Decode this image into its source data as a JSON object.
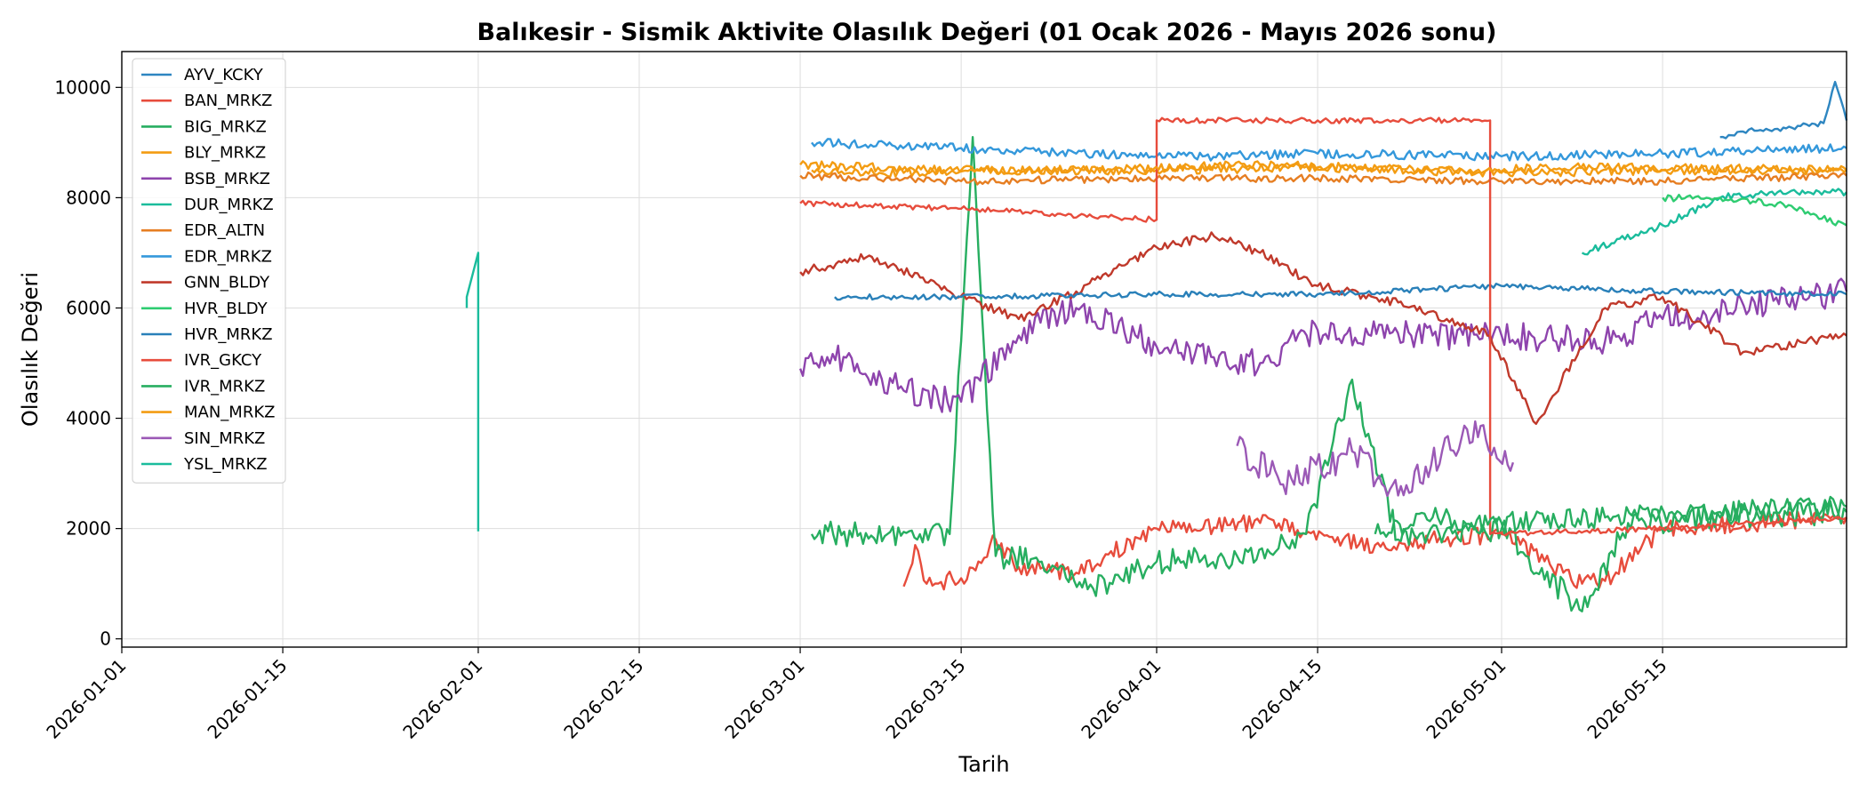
{
  "chart_data": {
    "type": "line",
    "title": "Balıkesir - Sismik Aktivite Olasılık Değeri (01 Ocak 2026 - Mayıs 2026 sonu)",
    "xlabel": "Tarih",
    "ylabel": "Olasılık Değeri",
    "x_range": [
      "2026-01-01",
      "2026-05-31"
    ],
    "ylim": [
      -150,
      10650
    ],
    "x_ticks": [
      "2026-01-01",
      "2026-01-15",
      "2026-02-01",
      "2026-02-15",
      "2026-03-01",
      "2026-03-15",
      "2026-04-01",
      "2026-04-15",
      "2026-05-01",
      "2026-05-15"
    ],
    "y_ticks": [
      0,
      2000,
      4000,
      6000,
      8000,
      10000
    ],
    "grid": true,
    "legend_position": "top-left",
    "series": [
      {
        "name": "AYV_KCKY",
        "color": "#2e86c1",
        "points": [
          [
            "2026-05-20",
            9100
          ],
          [
            "2026-05-22",
            9200
          ],
          [
            "2026-05-25",
            9250
          ],
          [
            "2026-05-27",
            9300
          ],
          [
            "2026-05-29",
            9350
          ],
          [
            "2026-05-30",
            10100
          ],
          [
            "2026-05-31",
            9400
          ]
        ]
      },
      {
        "name": "BAN_MRKZ",
        "color": "#e74c3c",
        "points": [
          [
            "2026-03-10",
            950
          ],
          [
            "2026-03-11",
            1700
          ],
          [
            "2026-03-12",
            1000
          ],
          [
            "2026-03-15",
            1100
          ],
          [
            "2026-03-18",
            1800
          ],
          [
            "2026-03-20",
            1300
          ],
          [
            "2026-03-25",
            1200
          ],
          [
            "2026-04-01",
            2000
          ],
          [
            "2026-04-10",
            2100
          ],
          [
            "2026-04-20",
            1700
          ],
          [
            "2026-05-01",
            1900
          ],
          [
            "2026-05-08",
            1000
          ],
          [
            "2026-05-10",
            1050
          ],
          [
            "2026-05-15",
            2000
          ],
          [
            "2026-05-31",
            2200
          ]
        ]
      },
      {
        "name": "BIG_MRKZ",
        "color": "#27ae60",
        "points": [
          [
            "2026-03-02",
            1900
          ],
          [
            "2026-03-14",
            1900
          ],
          [
            "2026-03-16",
            9100
          ],
          [
            "2026-03-18",
            1500
          ],
          [
            "2026-03-22",
            1400
          ],
          [
            "2026-03-26",
            900
          ],
          [
            "2026-04-01",
            1400
          ],
          [
            "2026-04-08",
            1500
          ],
          [
            "2026-04-14",
            1900
          ],
          [
            "2026-04-18",
            4700
          ],
          [
            "2026-04-22",
            1800
          ],
          [
            "2026-05-01",
            2000
          ],
          [
            "2026-05-08",
            500
          ],
          [
            "2026-05-12",
            2100
          ],
          [
            "2026-05-20",
            2200
          ],
          [
            "2026-05-31",
            2300
          ]
        ]
      },
      {
        "name": "BLY_MRKZ",
        "color": "#f39c12",
        "points": [
          [
            "2026-03-02",
            8500
          ],
          [
            "2026-03-10",
            8450
          ],
          [
            "2026-03-20",
            8500
          ],
          [
            "2026-04-01",
            8500
          ],
          [
            "2026-04-15",
            8550
          ],
          [
            "2026-05-01",
            8450
          ],
          [
            "2026-05-15",
            8500
          ],
          [
            "2026-05-31",
            8500
          ]
        ]
      },
      {
        "name": "BSB_MRKZ",
        "color": "#8e44ad",
        "points": [
          [
            "2026-03-01",
            4900
          ],
          [
            "2026-03-05",
            5100
          ],
          [
            "2026-03-10",
            4500
          ],
          [
            "2026-03-15",
            4300
          ],
          [
            "2026-03-20",
            5500
          ],
          [
            "2026-03-25",
            6000
          ],
          [
            "2026-04-01",
            5300
          ],
          [
            "2026-04-10",
            5000
          ],
          [
            "2026-04-15",
            5600
          ],
          [
            "2026-04-25",
            5500
          ],
          [
            "2026-05-01",
            5500
          ],
          [
            "2026-05-10",
            5400
          ],
          [
            "2026-05-15",
            5800
          ],
          [
            "2026-05-31",
            6300
          ]
        ]
      },
      {
        "name": "DUR_MRKZ",
        "color": "#1abc9c",
        "points": [
          [
            "2026-05-08",
            7000
          ],
          [
            "2026-05-15",
            7500
          ],
          [
            "2026-05-20",
            8000
          ],
          [
            "2026-05-25",
            8100
          ],
          [
            "2026-05-31",
            8100
          ]
        ]
      },
      {
        "name": "EDR_ALTN",
        "color": "#e67e22",
        "points": [
          [
            "2026-03-01",
            8400
          ],
          [
            "2026-03-15",
            8300
          ],
          [
            "2026-04-01",
            8350
          ],
          [
            "2026-04-15",
            8350
          ],
          [
            "2026-05-01",
            8300
          ],
          [
            "2026-05-15",
            8300
          ],
          [
            "2026-05-31",
            8400
          ]
        ]
      },
      {
        "name": "EDR_MRKZ",
        "color": "#3498db",
        "points": [
          [
            "2026-03-02",
            9000
          ],
          [
            "2026-03-09",
            8950
          ],
          [
            "2026-03-15",
            8900
          ],
          [
            "2026-03-25",
            8800
          ],
          [
            "2026-04-05",
            8750
          ],
          [
            "2026-04-15",
            8800
          ],
          [
            "2026-05-01",
            8750
          ],
          [
            "2026-05-15",
            8800
          ],
          [
            "2026-05-31",
            8900
          ]
        ]
      },
      {
        "name": "GNN_BLDY",
        "color": "#c0392b",
        "points": [
          [
            "2026-03-01",
            6650
          ],
          [
            "2026-03-07",
            6950
          ],
          [
            "2026-03-14",
            6300
          ],
          [
            "2026-03-20",
            5800
          ],
          [
            "2026-03-25",
            6300
          ],
          [
            "2026-04-01",
            7100
          ],
          [
            "2026-04-06",
            7300
          ],
          [
            "2026-04-10",
            7000
          ],
          [
            "2026-04-15",
            6400
          ],
          [
            "2026-04-22",
            6100
          ],
          [
            "2026-04-30",
            5500
          ],
          [
            "2026-05-04",
            3900
          ],
          [
            "2026-05-10",
            6000
          ],
          [
            "2026-05-15",
            6200
          ],
          [
            "2026-05-22",
            5200
          ],
          [
            "2026-05-31",
            5500
          ]
        ]
      },
      {
        "name": "HVR_BLDY",
        "color": "#2ecc71",
        "points": [
          [
            "2026-05-15",
            8000
          ],
          [
            "2026-05-20",
            8000
          ],
          [
            "2026-05-25",
            7900
          ],
          [
            "2026-05-31",
            7500
          ]
        ]
      },
      {
        "name": "HVR_MRKZ",
        "color": "#2980b9",
        "points": [
          [
            "2026-03-04",
            6200
          ],
          [
            "2026-03-15",
            6200
          ],
          [
            "2026-04-01",
            6250
          ],
          [
            "2026-04-15",
            6250
          ],
          [
            "2026-05-01",
            6400
          ],
          [
            "2026-05-15",
            6300
          ],
          [
            "2026-05-31",
            6250
          ]
        ]
      },
      {
        "name": "IVR_GKCY",
        "color": "#e74c3c",
        "points": [
          [
            "2026-03-01",
            7900
          ],
          [
            "2026-03-15",
            7800
          ],
          [
            "2026-04-01",
            7600
          ],
          [
            "2026-04-01",
            9400
          ],
          [
            "2026-04-15",
            9400
          ],
          [
            "2026-04-30",
            9400
          ],
          [
            "2026-04-30",
            1900
          ],
          [
            "2026-05-15",
            2000
          ],
          [
            "2026-05-31",
            2200
          ]
        ]
      },
      {
        "name": "IVR_MRKZ",
        "color": "#27ae60",
        "points": [
          [
            "2026-04-20",
            1900
          ],
          [
            "2026-04-25",
            2200
          ],
          [
            "2026-05-01",
            2100
          ],
          [
            "2026-05-10",
            2200
          ],
          [
            "2026-05-20",
            2300
          ],
          [
            "2026-05-31",
            2400
          ]
        ]
      },
      {
        "name": "MAN_MRKZ",
        "color": "#f39c12",
        "points": [
          [
            "2026-03-01",
            8600
          ],
          [
            "2026-03-15",
            8500
          ],
          [
            "2026-03-28",
            8500
          ],
          [
            "2026-04-10",
            8600
          ],
          [
            "2026-04-25",
            8500
          ],
          [
            "2026-05-10",
            8550
          ],
          [
            "2026-05-31",
            8500
          ]
        ]
      },
      {
        "name": "SIN_MRKZ",
        "color": "#9b59b6",
        "points": [
          [
            "2026-04-08",
            3500
          ],
          [
            "2026-04-12",
            2800
          ],
          [
            "2026-04-18",
            3400
          ],
          [
            "2026-04-22",
            2600
          ],
          [
            "2026-04-28",
            3800
          ],
          [
            "2026-05-02",
            3200
          ]
        ]
      },
      {
        "name": "YSL_MRKZ",
        "color": "#1abc9c",
        "points": [
          [
            "2026-01-31",
            6000
          ],
          [
            "2026-01-31",
            6200
          ],
          [
            "2026-02-01",
            7000
          ],
          [
            "2026-02-01",
            1950
          ]
        ]
      }
    ]
  }
}
